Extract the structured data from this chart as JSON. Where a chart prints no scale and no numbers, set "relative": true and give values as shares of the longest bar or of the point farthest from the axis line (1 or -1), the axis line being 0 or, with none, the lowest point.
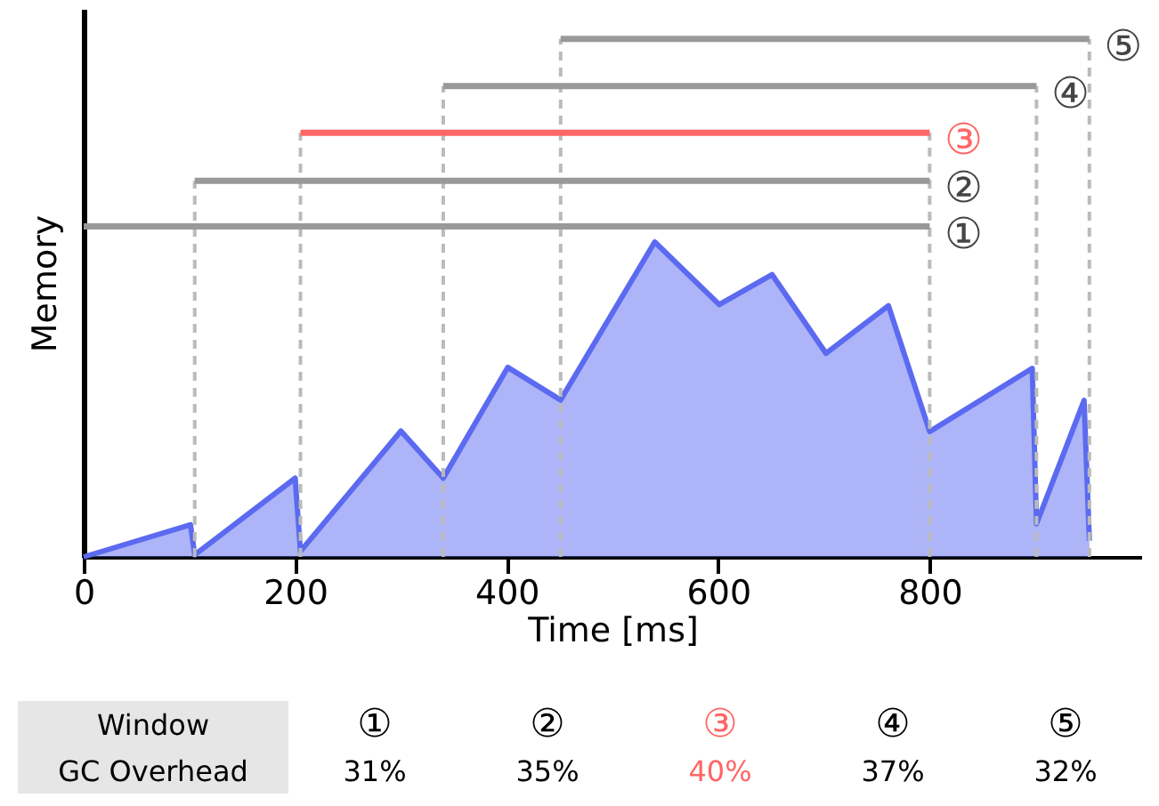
{
  "chart_data": {
    "type": "area",
    "xlabel": "Time [ms]",
    "ylabel": "Memory",
    "relative": true,
    "x": [
      0,
      101,
      105,
      200,
      205,
      300,
      340,
      401,
      451,
      540,
      601,
      651,
      702,
      761,
      800,
      897,
      901,
      946,
      951
    ],
    "xlim": [
      0,
      1000
    ],
    "xticks": [
      0,
      200,
      400,
      600,
      800
    ],
    "series": [
      {
        "color": "#5b6af0",
        "values": [
          0,
          0.062,
          0.004,
          0.152,
          0.011,
          0.243,
          0.152,
          0.366,
          0.303,
          0.608,
          0.487,
          0.545,
          0.393,
          0.485,
          0.242,
          0.364,
          0.064,
          0.302,
          0.031
        ]
      },
      {
        "type": "line",
        "color": "#bbbbbb",
        "line_style": "dashed",
        "x": [
          105,
          105
        ],
        "values": [
          0,
          0.726
        ]
      },
      {
        "type": "line",
        "color": "#bbbbbb",
        "line_style": "dashed",
        "x": [
          205,
          205
        ],
        "values": [
          0,
          0.819
        ]
      },
      {
        "type": "line",
        "color": "#bbbbbb",
        "line_style": "dashed",
        "x": [
          340,
          340
        ],
        "values": [
          0,
          0.909
        ]
      },
      {
        "type": "line",
        "color": "#bbbbbb",
        "line_style": "dashed",
        "x": [
          451,
          451
        ],
        "values": [
          0,
          1.0
        ]
      },
      {
        "type": "line",
        "color": "#bbbbbb",
        "line_style": "dashed",
        "x": [
          800,
          800
        ],
        "values": [
          0,
          0.819
        ]
      },
      {
        "type": "line",
        "color": "#bbbbbb",
        "line_style": "dashed",
        "x": [
          901,
          901
        ],
        "values": [
          0,
          0.909
        ]
      },
      {
        "type": "line",
        "color": "#bbbbbb",
        "line_style": "dashed",
        "x": [
          951,
          951
        ],
        "values": [
          0,
          1.0
        ]
      },
      {
        "type": "line",
        "name": "①",
        "color": "#999999",
        "x": [
          0,
          800
        ],
        "values": [
          0.638,
          0.638
        ]
      },
      {
        "type": "line",
        "name": "②",
        "color": "#999999",
        "x": [
          105,
          800
        ],
        "values": [
          0.726,
          0.726
        ]
      },
      {
        "type": "line",
        "name": "③",
        "color": "#ff6666",
        "x": [
          205,
          800
        ],
        "values": [
          0.819,
          0.819
        ]
      },
      {
        "type": "line",
        "name": "④",
        "color": "#999999",
        "x": [
          340,
          901
        ],
        "values": [
          0.909,
          0.909
        ]
      },
      {
        "type": "line",
        "name": "⑤",
        "color": "#999999",
        "x": [
          451,
          951
        ],
        "values": [
          1.0,
          1.0
        ]
      }
    ],
    "annotations": [
      "Window",
      "GC Overhead",
      "31%",
      "35%",
      "40%",
      "37%",
      "32%"
    ]
  }
}
